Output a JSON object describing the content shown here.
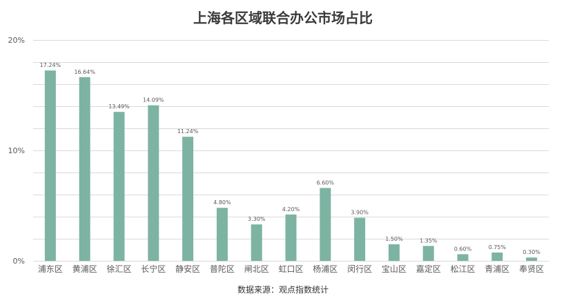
{
  "chart_data": {
    "type": "bar",
    "title": "上海各区域联合办公市场占比",
    "source": "数据来源：观点指数统计",
    "categories": [
      "浦东区",
      "黄浦区",
      "徐汇区",
      "长宁区",
      "静安区",
      "普陀区",
      "闸北区",
      "虹口区",
      "杨浦区",
      "闵行区",
      "宝山区",
      "嘉定区",
      "松江区",
      "青浦区",
      "奉贤区"
    ],
    "values": [
      17.24,
      16.64,
      13.49,
      14.09,
      11.24,
      4.8,
      3.3,
      4.2,
      6.6,
      3.9,
      1.5,
      1.35,
      0.6,
      0.75,
      0.3
    ],
    "value_labels": [
      "17.24%",
      "16.64%",
      "13.49%",
      "14.09%",
      "11.24%",
      "4.80%",
      "3.30%",
      "4.20%",
      "6.60%",
      "3.90%",
      "1.50%",
      "1.35%",
      "0.60%",
      "0.75%",
      "0.30%"
    ],
    "y_ticks": [
      0,
      10,
      20
    ],
    "y_tick_labels": [
      "0%",
      "10%",
      "20%"
    ],
    "ylim": [
      0,
      20
    ],
    "grid_step": 2,
    "grid": true,
    "legend": false,
    "bar_color": "#7db3a2",
    "grid_color": "#d9d9d9"
  }
}
